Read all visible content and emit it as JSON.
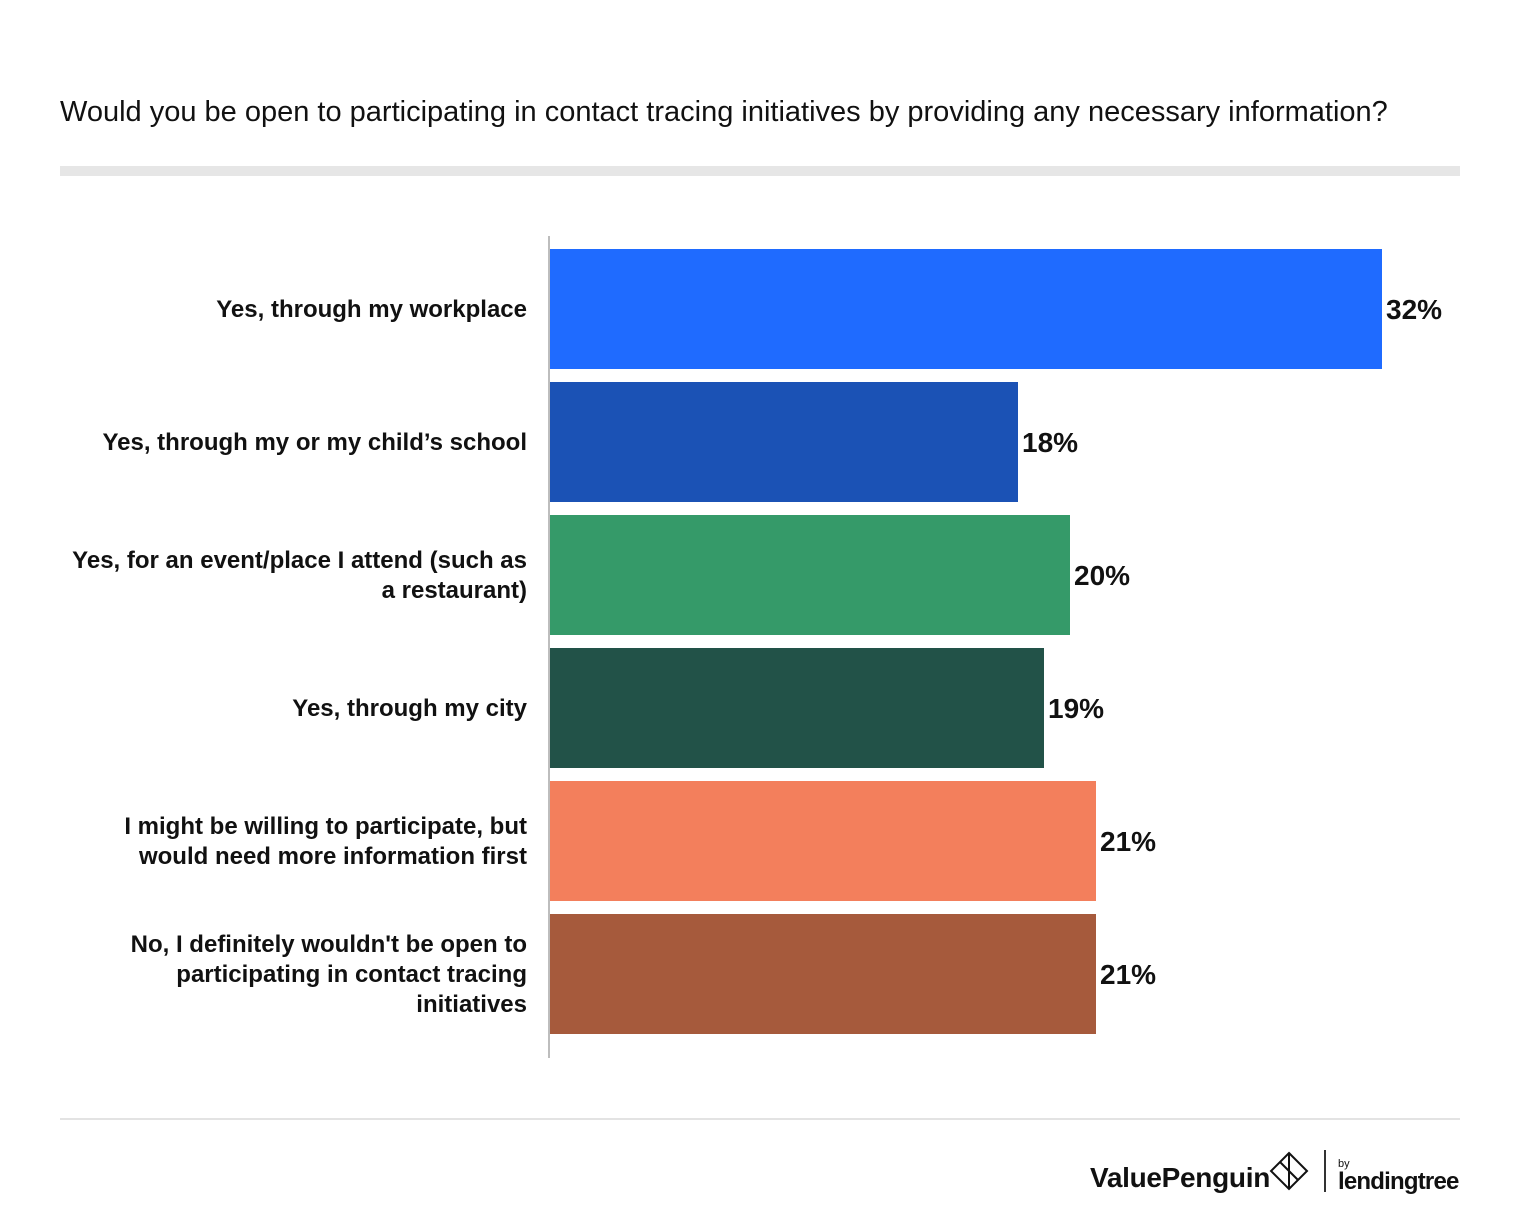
{
  "title": "Would you be open to participating in contact tracing initiatives by providing any necessary information?",
  "chart_data": {
    "type": "bar",
    "orientation": "horizontal",
    "title": "Would you be open to participating in contact tracing initiatives by providing any necessary information?",
    "categories": [
      [
        "Yes, through my workplace"
      ],
      [
        "Yes, through my or my child’s school"
      ],
      [
        "Yes, for an event/place I attend (such as",
        "a restaurant)"
      ],
      [
        "Yes, through my city"
      ],
      [
        "I might be willing to participate, but",
        "would need more information first"
      ],
      [
        "No, I definitely wouldn't be open to",
        "participating in contact tracing",
        "initiatives"
      ]
    ],
    "values": [
      32,
      18,
      20,
      19,
      21,
      21
    ],
    "value_labels": [
      "32%",
      "18%",
      "20%",
      "19%",
      "21%",
      "21%"
    ],
    "colors": [
      "#1f6bff",
      "#1b52b5",
      "#359a69",
      "#225248",
      "#f37f5c",
      "#a65a3c"
    ],
    "xlim": [
      0,
      32
    ],
    "xlabel": "",
    "ylabel": "",
    "grid": false
  },
  "footer": {
    "brand": "ValuePenguin",
    "by": "by",
    "partner": "lendingtree"
  }
}
